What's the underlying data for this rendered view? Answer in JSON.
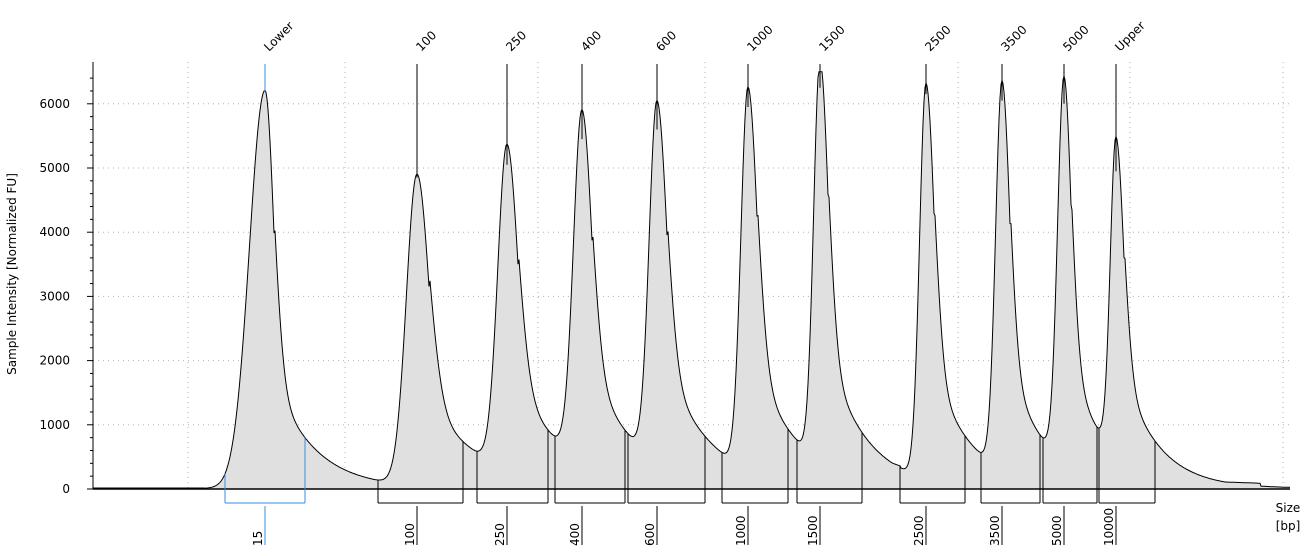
{
  "chart_data": {
    "type": "area",
    "title": "",
    "xlabel": "Size\n[bp]",
    "xlabel_lines": [
      "Size",
      "[bp]"
    ],
    "ylabel": "Sample Intensity [Normalized FU]",
    "ylim": [
      0,
      6500
    ],
    "y_ticks": [
      "0",
      "1000",
      "2000",
      "3000",
      "4000",
      "5000",
      "6000"
    ],
    "y_tick_values": [
      0,
      1000,
      2000,
      3000,
      4000,
      5000,
      6000
    ],
    "grid": true,
    "colors": {
      "fill": "#e0e0e0",
      "line": "#000000",
      "lower_marker": "#3a8ee6",
      "grid": "#b0b0b0"
    },
    "series": [
      {
        "values": [
          {
            "label": "Lower",
            "size_bp": 15,
            "intensity": 6200
          },
          {
            "label": "100",
            "size_bp": 100,
            "intensity": 4850
          },
          {
            "label": "250",
            "size_bp": 250,
            "intensity": 5050
          },
          {
            "label": "400",
            "size_bp": 400,
            "intensity": 5450
          },
          {
            "label": "600",
            "size_bp": 600,
            "intensity": 5600
          },
          {
            "label": "1000",
            "size_bp": 1000,
            "intensity": 5950
          },
          {
            "label": "1500",
            "size_bp": 1500,
            "intensity": 6250
          },
          {
            "label": "2500",
            "size_bp": 2500,
            "intensity": 6150
          },
          {
            "label": "3500",
            "size_bp": 3500,
            "intensity": 6050
          },
          {
            "label": "5000",
            "size_bp": 5000,
            "intensity": 6000
          },
          {
            "label": "Upper",
            "size_bp": 10000,
            "intensity": 4950
          }
        ]
      }
    ],
    "peaks": [
      {
        "label": "Lower",
        "size_label": "15",
        "intensity": 6200
      },
      {
        "label": "100",
        "size_label": "100",
        "intensity": 4850
      },
      {
        "label": "250",
        "size_label": "250",
        "intensity": 5050
      },
      {
        "label": "400",
        "size_label": "400",
        "intensity": 5450
      },
      {
        "label": "600",
        "size_label": "600",
        "intensity": 5600
      },
      {
        "label": "1000",
        "size_label": "1000",
        "intensity": 5950
      },
      {
        "label": "1500",
        "size_label": "1500",
        "intensity": 6250
      },
      {
        "label": "2500",
        "size_label": "2500",
        "intensity": 6150
      },
      {
        "label": "3500",
        "size_label": "3500",
        "intensity": 6050
      },
      {
        "label": "5000",
        "size_label": "5000",
        "intensity": 6000
      },
      {
        "label": "Upper",
        "size_label": "10000",
        "intensity": 4950
      }
    ],
    "x_tick_labels": [
      "15",
      "100",
      "250",
      "400",
      "600",
      "1000",
      "1500",
      "2500",
      "3500",
      "5000",
      "10000"
    ],
    "annotations": [
      {
        "text": "Lower",
        "color": "#3a8ee6"
      }
    ]
  }
}
